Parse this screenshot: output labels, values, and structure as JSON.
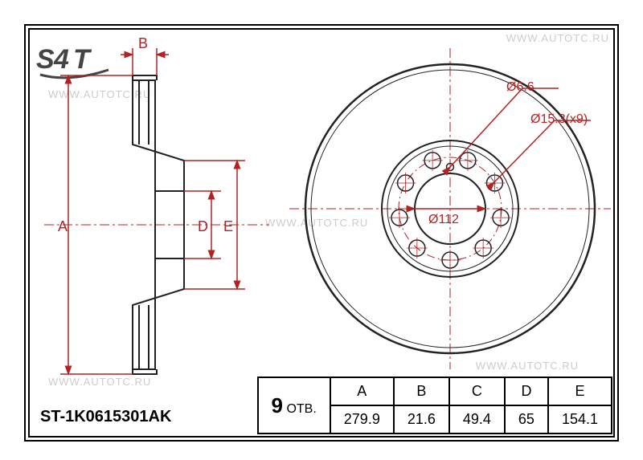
{
  "watermark_text": "WWW.AUTOTC.RU",
  "part_number": "ST-1K0615301AK",
  "holes": {
    "count": "9",
    "label": "ОТВ."
  },
  "dimensions": {
    "headers": [
      "A",
      "B",
      "C",
      "D",
      "E"
    ],
    "values": [
      "279.9",
      "21.6",
      "49.4",
      "65",
      "154.1"
    ]
  },
  "side_labels": {
    "A": "A",
    "B": "B",
    "D": "D",
    "E": "E"
  },
  "face_callouts": {
    "hole_small": "Ø6.6",
    "hole_large": "Ø15.3(x9)",
    "bore": "Ø112"
  },
  "colors": {
    "dim": "#b22222",
    "line": "#222222",
    "frame": "#000000",
    "watermark": "#cccccc",
    "bg": "#ffffff"
  },
  "geometry": {
    "side_view": {
      "overall_height": 360,
      "thickness": 28,
      "hat_depth": 64,
      "hub_height": 200,
      "bore_height": 82
    },
    "face_view": {
      "outer_d": 360,
      "inner_ring_d": 150,
      "bore_d": 88,
      "bolt_circle_d": 128,
      "bolt_hole_d": 20,
      "small_hole_d": 9,
      "bolt_count": 9
    }
  }
}
